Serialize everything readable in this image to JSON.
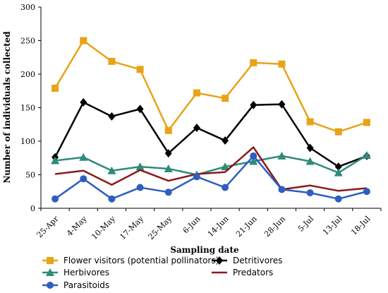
{
  "chart_data": {
    "type": "line",
    "xlabel": "Sampling date",
    "ylabel": "Number of individuals collected",
    "ylim": [
      0,
      300
    ],
    "yticks": [
      0,
      50,
      100,
      150,
      200,
      250,
      300
    ],
    "grid": false,
    "legend_position": "bottom",
    "categories": [
      "25-Apr",
      "4-May",
      "10-May",
      "17-May",
      "25-May",
      "6-Jun",
      "14-Jun",
      "21-Jun",
      "28-Jun",
      "5-Jul",
      "13-Jul",
      "18-Jul"
    ],
    "series": [
      {
        "name": "Flower visitors (potential pollinators)",
        "color": "#E8A317",
        "marker": "square",
        "values": [
          179,
          250,
          219,
          207,
          116,
          172,
          164,
          217,
          215,
          129,
          114,
          128
        ]
      },
      {
        "name": "Detritivores",
        "color": "#000000",
        "marker": "diamond",
        "values": [
          76,
          158,
          137,
          148,
          82,
          120,
          101,
          154,
          155,
          90,
          62,
          78
        ]
      },
      {
        "name": "Herbivores",
        "color": "#2E8B7A",
        "marker": "triangle",
        "values": [
          71,
          76,
          56,
          62,
          59,
          50,
          62,
          70,
          78,
          70,
          53,
          79
        ]
      },
      {
        "name": "Predators",
        "color": "#8B1A1A",
        "marker": "none",
        "values": [
          51,
          56,
          35,
          57,
          41,
          51,
          54,
          91,
          28,
          34,
          26,
          30
        ]
      },
      {
        "name": "Parasitoids",
        "color": "#2E5EBF",
        "marker": "circle",
        "values": [
          14,
          44,
          14,
          31,
          24,
          47,
          31,
          78,
          28,
          23,
          14,
          25
        ]
      }
    ]
  }
}
